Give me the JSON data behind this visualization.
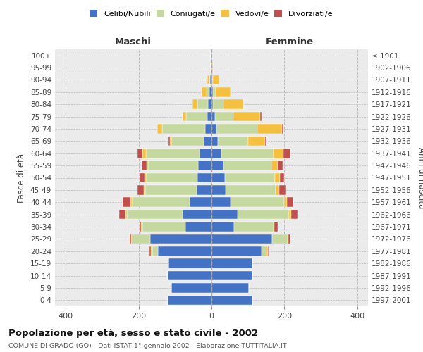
{
  "age_groups": [
    "0-4",
    "5-9",
    "10-14",
    "15-19",
    "20-24",
    "25-29",
    "30-34",
    "35-39",
    "40-44",
    "45-49",
    "50-54",
    "55-59",
    "60-64",
    "65-69",
    "70-74",
    "75-79",
    "80-84",
    "85-89",
    "90-94",
    "95-99",
    "100+"
  ],
  "birth_years": [
    "1997-2001",
    "1992-1996",
    "1987-1991",
    "1982-1986",
    "1977-1981",
    "1972-1976",
    "1967-1971",
    "1962-1966",
    "1957-1961",
    "1952-1956",
    "1947-1951",
    "1942-1946",
    "1937-1941",
    "1932-1936",
    "1927-1931",
    "1922-1926",
    "1917-1921",
    "1912-1916",
    "1907-1911",
    "1902-1906",
    "≤ 1901"
  ],
  "maschi_celibi": [
    120,
    110,
    120,
    118,
    148,
    168,
    72,
    80,
    60,
    40,
    38,
    36,
    32,
    22,
    18,
    12,
    10,
    5,
    3,
    1,
    1
  ],
  "maschi_coniugati": [
    0,
    0,
    0,
    0,
    14,
    48,
    118,
    152,
    158,
    142,
    142,
    138,
    148,
    88,
    118,
    58,
    28,
    8,
    2,
    0,
    0
  ],
  "maschi_vedovi": [
    0,
    0,
    0,
    0,
    4,
    4,
    4,
    4,
    4,
    4,
    4,
    4,
    9,
    4,
    14,
    9,
    14,
    14,
    7,
    1,
    0
  ],
  "maschi_divorziati": [
    0,
    0,
    0,
    0,
    4,
    4,
    4,
    18,
    23,
    18,
    14,
    14,
    14,
    5,
    0,
    0,
    0,
    0,
    0,
    0,
    0
  ],
  "femmine_nubili": [
    112,
    102,
    112,
    112,
    138,
    166,
    62,
    72,
    52,
    38,
    36,
    32,
    28,
    18,
    13,
    9,
    4,
    3,
    2,
    0,
    1
  ],
  "femmine_coniugate": [
    0,
    0,
    0,
    0,
    14,
    43,
    108,
    142,
    148,
    138,
    138,
    132,
    142,
    82,
    112,
    52,
    28,
    8,
    2,
    0,
    0
  ],
  "femmine_vedove": [
    0,
    0,
    0,
    0,
    2,
    3,
    3,
    4,
    7,
    9,
    13,
    18,
    28,
    48,
    68,
    72,
    56,
    42,
    18,
    4,
    0
  ],
  "femmine_divorziate": [
    0,
    0,
    0,
    0,
    2,
    4,
    9,
    18,
    18,
    18,
    13,
    13,
    18,
    4,
    4,
    4,
    0,
    0,
    0,
    0,
    0
  ],
  "colors": {
    "celibi_nubili": "#4472c4",
    "coniugati": "#c5d8a0",
    "vedovi": "#f5c040",
    "divorziati": "#c0504d"
  },
  "xlim": 430,
  "title": "Popolazione per età, sesso e stato civile - 2002",
  "subtitle": "COMUNE DI GRADO (GO) - Dati ISTAT 1° gennaio 2002 - Elaborazione TUTTITALIA.IT",
  "ylabel_left": "Fasce di età",
  "ylabel_right": "Anni di nascita",
  "xlabel_maschi": "Maschi",
  "xlabel_femmine": "Femmine",
  "bg_color": "#ffffff",
  "plot_bg": "#ebebeb"
}
